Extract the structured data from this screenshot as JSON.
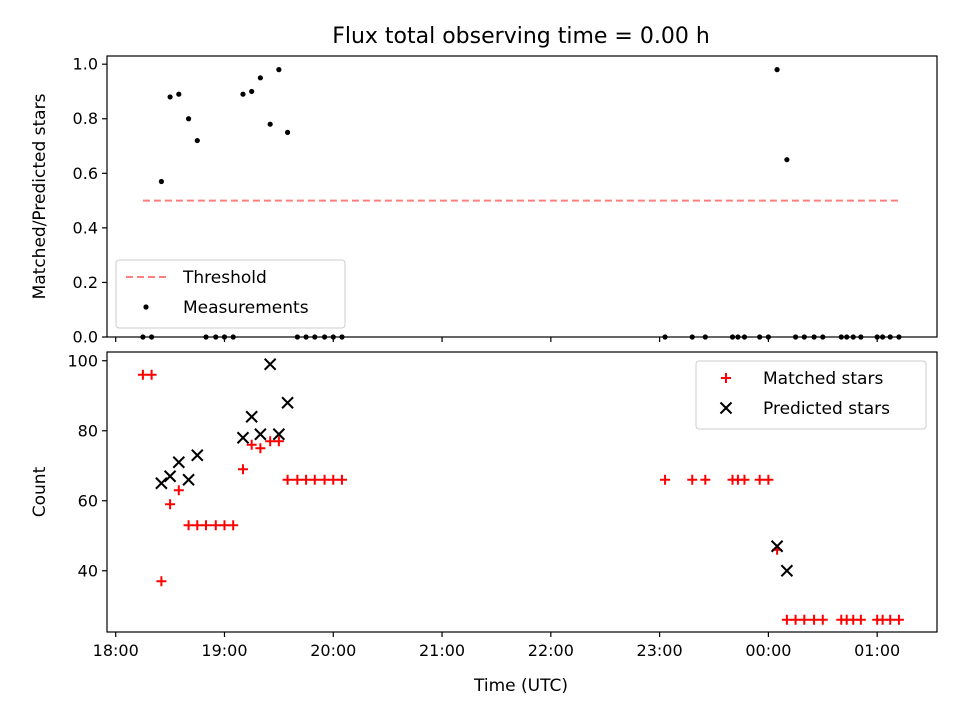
{
  "chart_data": {
    "title": "Flux total observing time = 0.00 h",
    "xlabel": "Time (UTC)",
    "x_unit": "time of day, hours since 18:00 UTC",
    "x_ticks": [
      {
        "value": 0,
        "label": "18:00"
      },
      {
        "value": 1,
        "label": "19:00"
      },
      {
        "value": 2,
        "label": "20:00"
      },
      {
        "value": 3,
        "label": "21:00"
      },
      {
        "value": 4,
        "label": "22:00"
      },
      {
        "value": 5,
        "label": "23:00"
      },
      {
        "value": 6,
        "label": "00:00"
      },
      {
        "value": 7,
        "label": "01:00"
      }
    ],
    "xlim": [
      -0.08,
      7.55
    ],
    "panels": [
      {
        "type": "scatter",
        "ylabel": "Matched/Predicted stars",
        "ylim": [
          0,
          1.03
        ],
        "y_ticks": [
          {
            "value": 0,
            "label": "0.0"
          },
          {
            "value": 0.2,
            "label": "0.2"
          },
          {
            "value": 0.4,
            "label": "0.4"
          },
          {
            "value": 0.6,
            "label": "0.6"
          },
          {
            "value": 0.8,
            "label": "0.8"
          },
          {
            "value": 1.0,
            "label": "1.0"
          }
        ],
        "legend_position": "lower-left",
        "series": [
          {
            "name": "Threshold",
            "kind": "dashed-line",
            "color": "#ff7f7f",
            "points": [
              [
                0.25,
                0.5
              ],
              [
                7.2,
                0.5
              ]
            ]
          },
          {
            "name": "Measurements",
            "kind": "dot",
            "color": "#000000",
            "points": [
              [
                0.25,
                0
              ],
              [
                0.33,
                0
              ],
              [
                0.42,
                0.57
              ],
              [
                0.5,
                0.88
              ],
              [
                0.58,
                0.89
              ],
              [
                0.67,
                0.8
              ],
              [
                0.75,
                0.72
              ],
              [
                0.83,
                0
              ],
              [
                0.92,
                0
              ],
              [
                1.0,
                0
              ],
              [
                1.08,
                0
              ],
              [
                1.17,
                0.89
              ],
              [
                1.25,
                0.9
              ],
              [
                1.33,
                0.95
              ],
              [
                1.42,
                0.78
              ],
              [
                1.5,
                0.98
              ],
              [
                1.58,
                0.75
              ],
              [
                1.67,
                0
              ],
              [
                1.75,
                0
              ],
              [
                1.83,
                0
              ],
              [
                1.92,
                0
              ],
              [
                2.0,
                0
              ],
              [
                2.08,
                0
              ],
              [
                5.05,
                0
              ],
              [
                5.3,
                0
              ],
              [
                5.42,
                0
              ],
              [
                5.67,
                0
              ],
              [
                5.72,
                0
              ],
              [
                5.78,
                0
              ],
              [
                5.92,
                0
              ],
              [
                6.0,
                0
              ],
              [
                6.08,
                0.98
              ],
              [
                6.17,
                0.65
              ],
              [
                6.25,
                0
              ],
              [
                6.33,
                0
              ],
              [
                6.42,
                0
              ],
              [
                6.5,
                0
              ],
              [
                6.67,
                0
              ],
              [
                6.72,
                0
              ],
              [
                6.78,
                0
              ],
              [
                6.85,
                0
              ],
              [
                7.0,
                0
              ],
              [
                7.05,
                0
              ],
              [
                7.12,
                0
              ],
              [
                7.2,
                0
              ]
            ]
          }
        ]
      },
      {
        "type": "scatter",
        "ylabel": "Count",
        "ylim": [
          22.5,
          102.5
        ],
        "y_ticks": [
          {
            "value": 40,
            "label": "40"
          },
          {
            "value": 60,
            "label": "60"
          },
          {
            "value": 80,
            "label": "80"
          },
          {
            "value": 100,
            "label": "100"
          }
        ],
        "legend_position": "upper-right",
        "series": [
          {
            "name": "Matched stars",
            "kind": "plus",
            "color": "#ff0000",
            "points": [
              [
                0.25,
                96
              ],
              [
                0.33,
                96
              ],
              [
                0.42,
                37
              ],
              [
                0.5,
                59
              ],
              [
                0.58,
                63
              ],
              [
                0.67,
                53
              ],
              [
                0.75,
                53
              ],
              [
                0.83,
                53
              ],
              [
                0.92,
                53
              ],
              [
                1.0,
                53
              ],
              [
                1.08,
                53
              ],
              [
                1.17,
                69
              ],
              [
                1.25,
                76
              ],
              [
                1.33,
                75
              ],
              [
                1.42,
                77
              ],
              [
                1.5,
                77
              ],
              [
                1.58,
                66
              ],
              [
                1.67,
                66
              ],
              [
                1.75,
                66
              ],
              [
                1.83,
                66
              ],
              [
                1.92,
                66
              ],
              [
                2.0,
                66
              ],
              [
                2.08,
                66
              ],
              [
                5.05,
                66
              ],
              [
                5.3,
                66
              ],
              [
                5.42,
                66
              ],
              [
                5.67,
                66
              ],
              [
                5.72,
                66
              ],
              [
                5.78,
                66
              ],
              [
                5.92,
                66
              ],
              [
                6.0,
                66
              ],
              [
                6.08,
                46
              ],
              [
                6.17,
                26
              ],
              [
                6.25,
                26
              ],
              [
                6.33,
                26
              ],
              [
                6.42,
                26
              ],
              [
                6.5,
                26
              ],
              [
                6.67,
                26
              ],
              [
                6.72,
                26
              ],
              [
                6.78,
                26
              ],
              [
                6.85,
                26
              ],
              [
                7.0,
                26
              ],
              [
                7.05,
                26
              ],
              [
                7.12,
                26
              ],
              [
                7.2,
                26
              ]
            ]
          },
          {
            "name": "Predicted stars",
            "kind": "x",
            "color": "#000000",
            "points": [
              [
                0.42,
                65
              ],
              [
                0.5,
                67
              ],
              [
                0.58,
                71
              ],
              [
                0.67,
                66
              ],
              [
                0.75,
                73
              ],
              [
                1.17,
                78
              ],
              [
                1.25,
                84
              ],
              [
                1.33,
                79
              ],
              [
                1.42,
                99
              ],
              [
                1.5,
                79
              ],
              [
                1.58,
                88
              ],
              [
                6.08,
                47
              ],
              [
                6.17,
                40
              ]
            ]
          }
        ]
      }
    ]
  }
}
